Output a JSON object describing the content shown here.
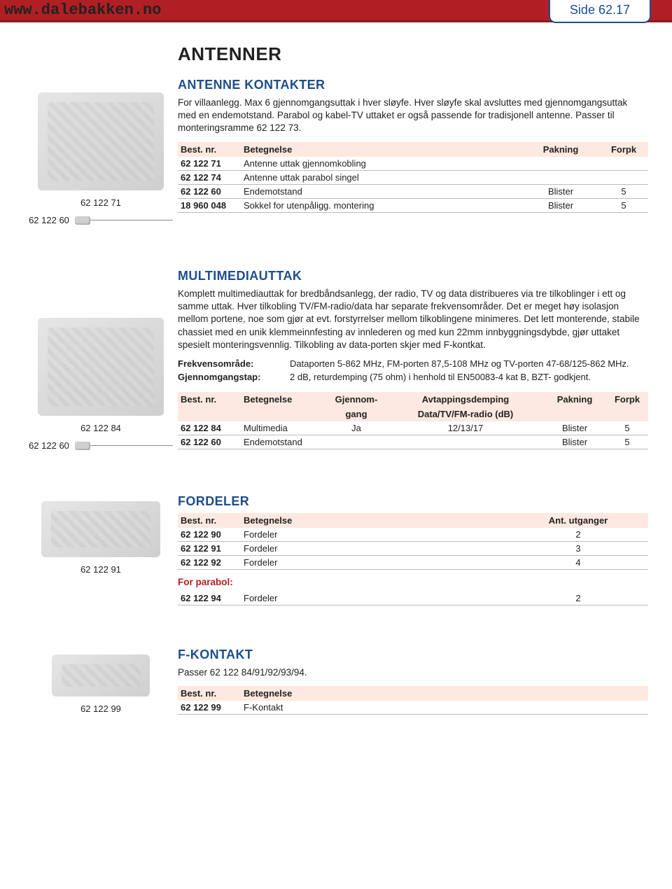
{
  "header": {
    "url": "www.dalebakken.no",
    "page_label": "Side 62.17"
  },
  "colors": {
    "topbar_bg": "#b01f24",
    "accent_blue": "#1e4e8c",
    "table_header_bg": "#fde9e0",
    "row_border": "#bbbbbb"
  },
  "page_title": "ANTENNER",
  "section1": {
    "title": "ANTENNE KONTAKTER",
    "desc": "For villaanlegg. Max 6 gjennomgangsuttak i hver sløyfe. Hver sløyfe skal avsluttes med gjennomgangsuttak med en endemotstand. Parabol og kabel-TV uttaket er også passende for tradisjonell antenne. Passer til monteringsramme 62 122 73.",
    "img_labels": [
      "62 122 71",
      "62 122 60"
    ],
    "columns": [
      "Best. nr.",
      "Betegnelse",
      "Pakning",
      "Forpk"
    ],
    "rows": [
      {
        "pn": "62 122 71",
        "bet": "Antenne uttak gjennomkobling",
        "pak": "",
        "forpk": ""
      },
      {
        "pn": "62 122 74",
        "bet": "Antenne uttak parabol singel",
        "pak": "",
        "forpk": ""
      },
      {
        "pn": "62 122 60",
        "bet": "Endemotstand",
        "pak": "Blister",
        "forpk": "5"
      },
      {
        "pn": "18 960 048",
        "bet": "Sokkel for utenpåligg. montering",
        "pak": "Blister",
        "forpk": "5"
      }
    ]
  },
  "section2": {
    "title": "MULTIMEDIAUTTAK",
    "desc": "Komplett multimediauttak for bredbåndsanlegg, der radio, TV og data distribueres via tre tilkoblinger i ett og samme uttak. Hver tilkobling TV/FM-radio/data har separate frekvensområder. Det er meget høy isolasjon mellom portene, noe som gjør at evt. forstyrrelser mellom tilkoblingene minimeres. Det lett monterende, stabile chassiet med en unik klemmeinnfesting av innlederen og med kun 22mm innbyggningsdybde, gjør uttaket spesielt monteringsvennlig. Tilkobling av data-porten skjer med F-kontkat.",
    "specs": [
      {
        "label": "Frekvensområde:",
        "value": "Dataporten 5-862 MHz, FM-porten 87,5-108 MHz og TV-porten 47-68/125-862 MHz."
      },
      {
        "label": "Gjennomgangstap:",
        "value": "2 dB, returdemping (75 ohm) i henhold til EN50083-4 kat B, BZT- godkjent."
      }
    ],
    "img_labels": [
      "62 122 84",
      "62 122 60"
    ],
    "columns_l1": [
      "Best. nr.",
      "Betegnelse",
      "Gjennom-",
      "Avtappingsdemping",
      "Pakning",
      "Forpk"
    ],
    "columns_l2": [
      "",
      "",
      "gang",
      "Data/TV/FM-radio (dB)",
      "",
      ""
    ],
    "rows": [
      {
        "pn": "62 122 84",
        "bet": "Multimedia",
        "g": "Ja",
        "a": "12/13/17",
        "pak": "Blister",
        "forpk": "5"
      },
      {
        "pn": "62 122 60",
        "bet": "Endemotstand",
        "g": "",
        "a": "",
        "pak": "Blister",
        "forpk": "5"
      }
    ]
  },
  "section3": {
    "title": "FORDELER",
    "img_labels": [
      "62 122 91"
    ],
    "columns": [
      "Best. nr.",
      "Betegnelse",
      "Ant. utganger"
    ],
    "rows": [
      {
        "pn": "62 122 90",
        "bet": "Fordeler",
        "ant": "2"
      },
      {
        "pn": "62 122 91",
        "bet": "Fordeler",
        "ant": "3"
      },
      {
        "pn": "62 122 92",
        "bet": "Fordeler",
        "ant": "4"
      }
    ],
    "sub_label": "For parabol:",
    "rows2": [
      {
        "pn": "62 122 94",
        "bet": "Fordeler",
        "ant": "2"
      }
    ]
  },
  "section4": {
    "title": "F-KONTAKT",
    "desc": "Passer 62 122 84/91/92/93/94.",
    "img_labels": [
      "62 122 99"
    ],
    "columns": [
      "Best. nr.",
      "Betegnelse"
    ],
    "rows": [
      {
        "pn": "62 122 99",
        "bet": "F-Kontakt"
      }
    ]
  }
}
